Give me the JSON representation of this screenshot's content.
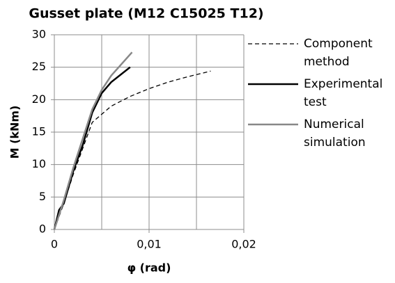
{
  "chart_data": {
    "type": "line",
    "title": "Gusset plate (M12 C15025 T12)",
    "xlabel": "φ (rad)",
    "ylabel": "M (kNm)",
    "xlim": [
      0,
      0.02
    ],
    "ylim": [
      0,
      30
    ],
    "xticks": [
      0,
      {
        "value": 0.01,
        "label": "0,01"
      },
      {
        "value": 0.02,
        "label": "0,02"
      }
    ],
    "xminor": [
      0.005,
      0.015
    ],
    "yticks": [
      0,
      5,
      10,
      15,
      20,
      25,
      30
    ],
    "grid": true,
    "legend": "right",
    "series": [
      {
        "name": "Component method",
        "color": "#000000",
        "dash": "dashed",
        "x": [
          0,
          0.001,
          0.002,
          0.003,
          0.004,
          0.006,
          0.008,
          0.01,
          0.012,
          0.014,
          0.0165
        ],
        "values": [
          0,
          4,
          8.5,
          12.5,
          16.5,
          19,
          20.5,
          21.7,
          22.7,
          23.5,
          24.4
        ]
      },
      {
        "name": "Experimental test",
        "color": "#000000",
        "dash": "solid",
        "x": [
          0,
          0.0005,
          0.001,
          0.0015,
          0.002,
          0.003,
          0.004,
          0.005,
          0.006,
          0.008
        ],
        "values": [
          0,
          3,
          4,
          6.5,
          9,
          13,
          18,
          21,
          22.7,
          25
        ]
      },
      {
        "name": "Numerical simulation",
        "color": "#888888",
        "dash": "solid",
        "x": [
          0,
          0.001,
          0.002,
          0.003,
          0.004,
          0.005,
          0.006,
          0.0082
        ],
        "values": [
          0,
          4.5,
          9.5,
          14,
          18.5,
          21.5,
          23.7,
          27.3
        ]
      }
    ]
  }
}
